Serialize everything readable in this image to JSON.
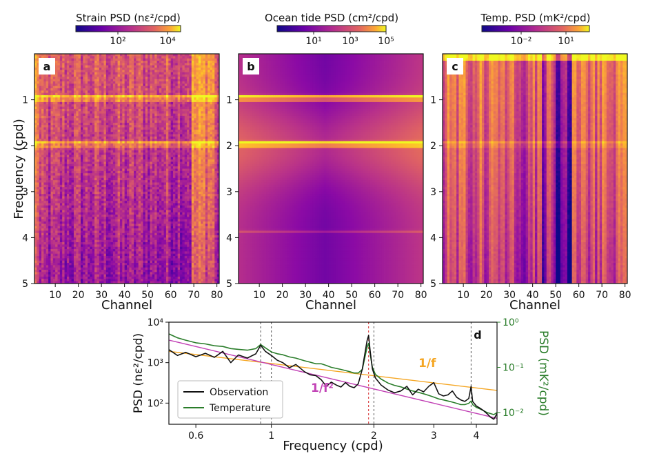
{
  "chart_data": [
    {
      "type": "heatmap",
      "panel_label": "a",
      "colorbar_title": "Strain PSD (nε²/cpd)",
      "colorbar_ticks": [
        "10²",
        "10⁴"
      ],
      "xlabel": "Channel",
      "ylabel": "Frequency (cpd)",
      "xticks": [
        10,
        20,
        30,
        40,
        50,
        60,
        70,
        80
      ],
      "yticks": [
        1,
        2,
        3,
        4,
        5
      ],
      "xlim": [
        1,
        81
      ],
      "ylim": [
        0,
        5
      ],
      "colormap": "plasma",
      "tidal_bands_cpd": [
        0.93,
        1.0,
        1.93,
        2.0
      ],
      "bright_channels": [
        1,
        2,
        69,
        70,
        71,
        72,
        73,
        74,
        75,
        76,
        77,
        78
      ]
    },
    {
      "type": "heatmap",
      "panel_label": "b",
      "colorbar_title": "Ocean tide PSD (cm²/cpd)",
      "colorbar_ticks": [
        "10¹",
        "10³",
        "10⁵"
      ],
      "xlabel": "Channel",
      "ylabel": "",
      "xticks": [
        10,
        20,
        30,
        40,
        50,
        60,
        70,
        80
      ],
      "yticks": [
        1,
        2,
        3,
        4,
        5
      ],
      "xlim": [
        1,
        81
      ],
      "ylim": [
        0,
        5
      ],
      "colormap": "plasma",
      "tidal_bands_cpd": [
        0.93,
        1.0,
        1.93,
        2.0,
        3.86
      ]
    },
    {
      "type": "heatmap",
      "panel_label": "c",
      "colorbar_title": "Temp. PSD (mK²/cpd)",
      "colorbar_ticks": [
        "10⁻²",
        "10¹"
      ],
      "xlabel": "Channel",
      "ylabel": "",
      "xticks": [
        10,
        20,
        30,
        40,
        50,
        60,
        70,
        80
      ],
      "yticks": [
        1,
        2,
        3,
        4,
        5
      ],
      "xlim": [
        1,
        81
      ],
      "ylim": [
        0,
        5
      ],
      "colormap": "plasma",
      "dark_channels": [
        35,
        36,
        44,
        45,
        49,
        50,
        51,
        52,
        53,
        54,
        55,
        56
      ],
      "tidal_bands_cpd": [
        1.93,
        2.0
      ]
    },
    {
      "type": "line",
      "panel_label": "d",
      "xlabel": "Frequency (cpd)",
      "ylabel": "PSD (nε²/cpd)",
      "y2label": "PSD (mK²/cpd)",
      "xscale": "log",
      "yscale": "log",
      "xlim": [
        0.5,
        4.6
      ],
      "ylim": [
        30,
        10000
      ],
      "y2lim": [
        0.0055,
        1
      ],
      "xticks": [
        0.6,
        1,
        2,
        3,
        4
      ],
      "yticks": [
        100,
        1000,
        10000
      ],
      "ytick_labels": [
        "10²",
        "10³",
        "10⁴"
      ],
      "y2ticks": [
        0.01,
        0.1,
        1
      ],
      "y2tick_labels": [
        "10⁻²",
        "10⁻¹",
        "10⁰"
      ],
      "vlines": [
        0.93,
        1.0,
        1.93,
        2.0,
        3.86
      ],
      "red_vline": 1.93,
      "legend_position": "lower-left",
      "legend": [
        "Observation",
        "Temperature"
      ],
      "annotations": [
        "1/f",
        "1/f²"
      ],
      "colors": {
        "observation": "#111111",
        "temperature": "#2a7d2a",
        "one_over_f": "#f5a623",
        "one_over_f2": "#c243b6",
        "y2axis": "#2a7d2a"
      },
      "series": [
        {
          "name": "Observation",
          "axis": "left",
          "x": [
            0.5,
            0.53,
            0.56,
            0.6,
            0.64,
            0.68,
            0.72,
            0.76,
            0.8,
            0.85,
            0.9,
            0.93,
            0.96,
            1.0,
            1.04,
            1.08,
            1.13,
            1.18,
            1.25,
            1.3,
            1.35,
            1.4,
            1.45,
            1.5,
            1.55,
            1.6,
            1.65,
            1.7,
            1.75,
            1.8,
            1.85,
            1.88,
            1.91,
            1.93,
            1.95,
            1.98,
            2.02,
            2.1,
            2.2,
            2.3,
            2.4,
            2.5,
            2.6,
            2.7,
            2.8,
            2.9,
            3.0,
            3.1,
            3.2,
            3.3,
            3.4,
            3.5,
            3.6,
            3.7,
            3.8,
            3.86,
            3.9,
            4.0,
            4.1,
            4.2,
            4.3,
            4.4,
            4.5,
            4.6
          ],
          "y": [
            2100,
            1500,
            1800,
            1400,
            1700,
            1350,
            1900,
            1000,
            1550,
            1300,
            1650,
            2700,
            1900,
            1500,
            1150,
            1000,
            750,
            900,
            600,
            500,
            480,
            380,
            260,
            330,
            280,
            250,
            320,
            260,
            240,
            300,
            700,
            1600,
            3500,
            4700,
            2000,
            700,
            420,
            280,
            210,
            180,
            200,
            260,
            160,
            220,
            190,
            260,
            320,
            170,
            150,
            160,
            200,
            140,
            120,
            110,
            130,
            260,
            110,
            85,
            75,
            65,
            55,
            45,
            40,
            55
          ]
        },
        {
          "name": "Temperature",
          "axis": "right",
          "x": [
            0.5,
            0.53,
            0.56,
            0.6,
            0.64,
            0.68,
            0.72,
            0.76,
            0.8,
            0.85,
            0.9,
            0.93,
            0.96,
            1.0,
            1.04,
            1.08,
            1.13,
            1.18,
            1.25,
            1.3,
            1.35,
            1.4,
            1.45,
            1.5,
            1.55,
            1.6,
            1.65,
            1.7,
            1.75,
            1.8,
            1.85,
            1.88,
            1.91,
            1.93,
            1.95,
            1.98,
            2.02,
            2.1,
            2.2,
            2.3,
            2.4,
            2.5,
            2.6,
            2.7,
            2.8,
            2.9,
            3.0,
            3.1,
            3.2,
            3.3,
            3.4,
            3.5,
            3.6,
            3.7,
            3.8,
            3.86,
            3.9,
            4.0,
            4.1,
            4.2,
            4.3,
            4.4,
            4.5,
            4.6
          ],
          "y": [
            0.55,
            0.45,
            0.4,
            0.35,
            0.33,
            0.3,
            0.29,
            0.26,
            0.25,
            0.24,
            0.26,
            0.32,
            0.27,
            0.22,
            0.2,
            0.19,
            0.17,
            0.16,
            0.14,
            0.13,
            0.12,
            0.12,
            0.11,
            0.1,
            0.095,
            0.09,
            0.085,
            0.08,
            0.075,
            0.075,
            0.09,
            0.16,
            0.28,
            0.34,
            0.2,
            0.1,
            0.07,
            0.055,
            0.045,
            0.04,
            0.037,
            0.033,
            0.03,
            0.028,
            0.026,
            0.024,
            0.022,
            0.02,
            0.019,
            0.018,
            0.017,
            0.016,
            0.015,
            0.015,
            0.016,
            0.018,
            0.015,
            0.013,
            0.012,
            0.011,
            0.01,
            0.0095,
            0.009,
            0.01
          ]
        },
        {
          "name": "1/f",
          "axis": "left",
          "x": [
            0.5,
            4.6
          ],
          "y": [
            1900,
            206
          ]
        },
        {
          "name": "1/f²",
          "axis": "left",
          "x": [
            0.5,
            4.6
          ],
          "y": [
            3600,
            42
          ]
        }
      ]
    }
  ]
}
